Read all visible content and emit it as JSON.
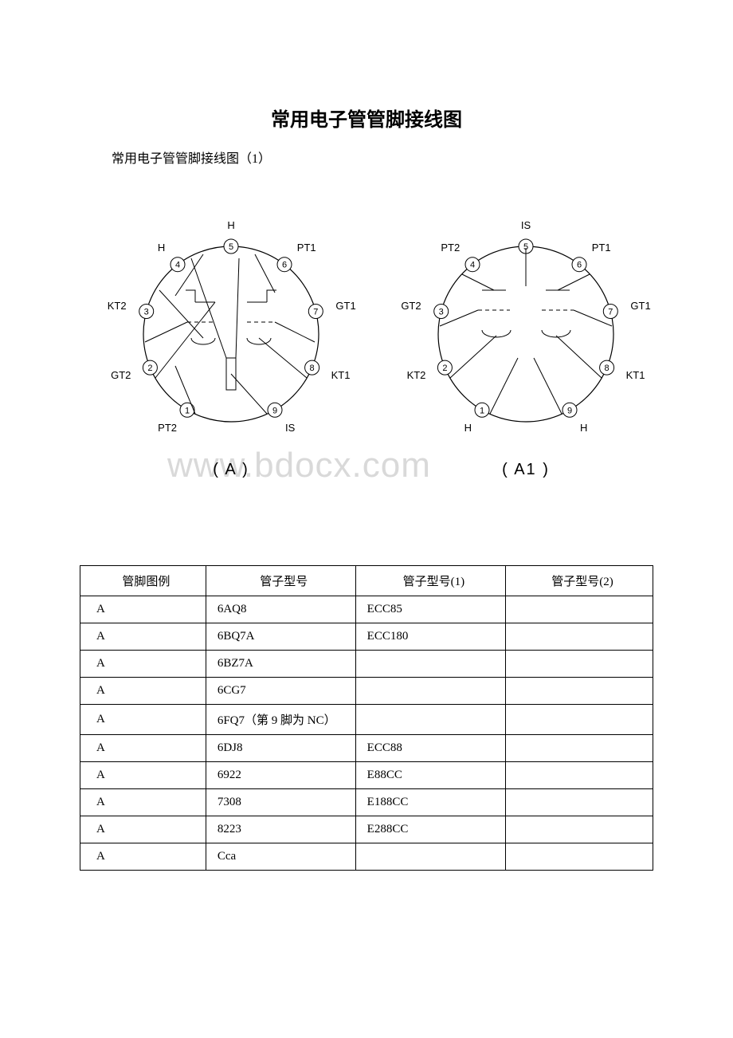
{
  "title": "常用电子管管脚接线图",
  "subtitle": "常用电子管管脚接线图（1）",
  "watermark": "www.bdocx.com",
  "diagram_a": {
    "caption": "( A )",
    "stroke": "#000000",
    "fill": "#ffffff",
    "radius": 110,
    "pin_radius": 9,
    "pins": [
      {
        "n": "1",
        "label": "PT2",
        "label_side": "bottom-left"
      },
      {
        "n": "2",
        "label": "GT2",
        "label_side": "left"
      },
      {
        "n": "3",
        "label": "KT2",
        "label_side": "left"
      },
      {
        "n": "4",
        "label": "H",
        "label_side": "top-left"
      },
      {
        "n": "5",
        "label": "H",
        "label_side": "top"
      },
      {
        "n": "6",
        "label": "PT1",
        "label_side": "top-right"
      },
      {
        "n": "7",
        "label": "GT1",
        "label_side": "right"
      },
      {
        "n": "8",
        "label": "KT1",
        "label_side": "right"
      },
      {
        "n": "9",
        "label": "IS",
        "label_side": "bottom-right"
      }
    ]
  },
  "diagram_a1": {
    "caption": "( A1 )",
    "stroke": "#000000",
    "fill": "#ffffff",
    "radius": 110,
    "pin_radius": 9,
    "pins": [
      {
        "n": "1",
        "label": "H",
        "label_side": "bottom"
      },
      {
        "n": "2",
        "label": "KT2",
        "label_side": "left"
      },
      {
        "n": "3",
        "label": "GT2",
        "label_side": "left"
      },
      {
        "n": "4",
        "label": "PT2",
        "label_side": "top-left"
      },
      {
        "n": "5",
        "label": "IS",
        "label_side": "top"
      },
      {
        "n": "6",
        "label": "PT1",
        "label_side": "top-right"
      },
      {
        "n": "7",
        "label": "GT1",
        "label_side": "right"
      },
      {
        "n": "8",
        "label": "KT1",
        "label_side": "right"
      },
      {
        "n": "9",
        "label": "H",
        "label_side": "bottom"
      }
    ]
  },
  "table": {
    "headers": [
      "管脚图例",
      "管子型号",
      "管子型号(1)",
      "管子型号(2)"
    ],
    "rows": [
      [
        "A",
        "6AQ8",
        "ECC85",
        ""
      ],
      [
        "A",
        "6BQ7A",
        "ECC180",
        ""
      ],
      [
        "A",
        "6BZ7A",
        "",
        ""
      ],
      [
        "A",
        "6CG7",
        "",
        ""
      ],
      [
        "A",
        "6FQ7（第 9 脚为 NC）",
        "",
        ""
      ],
      [
        "A",
        "6DJ8",
        "ECC88",
        ""
      ],
      [
        "A",
        "6922",
        "E88CC",
        ""
      ],
      [
        "A",
        "7308",
        "E188CC",
        ""
      ],
      [
        "A",
        "8223",
        "E288CC",
        ""
      ],
      [
        "A",
        "Cca",
        "",
        ""
      ]
    ]
  }
}
